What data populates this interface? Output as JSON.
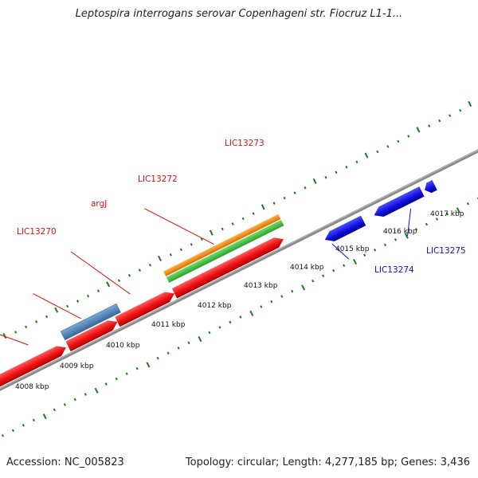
{
  "title": "Leptospira interrogans serovar Copenhageni str. Fiocruz L1-1...",
  "footer": {
    "accession": "Accession: NC_005823",
    "summary": "Topology: circular; Length: 4,277,185 bp; Genes: 3,436"
  },
  "colors": {
    "backbone": "#777777",
    "tick": "#1e7a1e",
    "forward_gene": "#ee1111",
    "reverse_gene": "#1111dd",
    "steel_feature": "#4a7fb5",
    "orange_feature": "#f08a12",
    "green_feature": "#3fbf3f"
  },
  "scale_labels": [
    "4008 kbp",
    "4009 kbp",
    "4010 kbp",
    "4011 kbp",
    "4012 kbp",
    "4013 kbp",
    "4014 kbp",
    "4015 kbp",
    "4016 kbp",
    "4017 kbp"
  ],
  "gene_labels": [
    {
      "text": "LIC13270",
      "color": "#dd1111"
    },
    {
      "text": "argJ",
      "color": "#dd1111"
    },
    {
      "text": "LIC13272",
      "color": "#dd1111"
    },
    {
      "text": "LIC13273",
      "color": "#dd1111"
    },
    {
      "text": "LIC13274",
      "color": "#1111cc"
    },
    {
      "text": "LIC13275",
      "color": "#1111cc"
    }
  ]
}
